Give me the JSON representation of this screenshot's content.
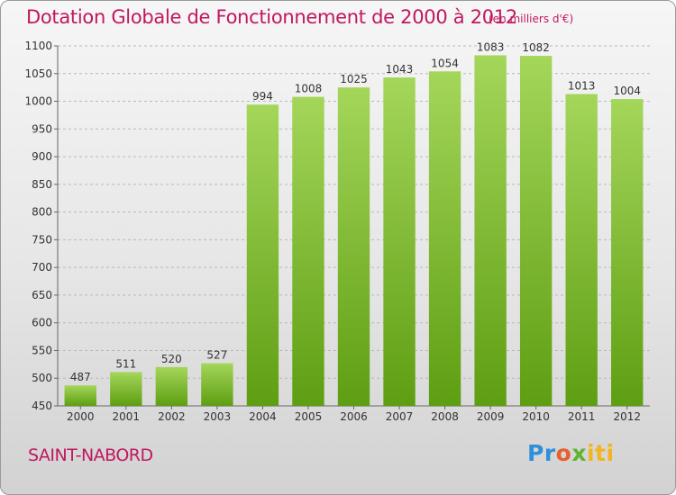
{
  "header": {
    "title": "Dotation Globale de Fonctionnement de 2000 à 2012",
    "unit": "(en milliers d'€)"
  },
  "footer": {
    "town": "SAINT-NABORD",
    "logo": {
      "p1": "Pr",
      "p2": "o",
      "p3": "x",
      "p4": "iti"
    }
  },
  "colors": {
    "title": "#c0185f",
    "bar_top": "#a4d65a",
    "bar_bottom": "#5e9e12",
    "grid": "#b8b8b8"
  },
  "chart_data": {
    "type": "bar",
    "title": "Dotation Globale de Fonctionnement de 2000 à 2012",
    "subtitle": "(en milliers d'€)",
    "xlabel": "",
    "ylabel": "",
    "categories": [
      "2000",
      "2001",
      "2002",
      "2003",
      "2004",
      "2005",
      "2006",
      "2007",
      "2008",
      "2009",
      "2010",
      "2011",
      "2012"
    ],
    "values": [
      487,
      511,
      520,
      527,
      994,
      1008,
      1025,
      1043,
      1054,
      1083,
      1082,
      1013,
      1004
    ],
    "ylim": [
      450,
      1100
    ],
    "yticks": [
      450,
      500,
      550,
      600,
      650,
      700,
      750,
      800,
      850,
      900,
      950,
      1000,
      1050,
      1100
    ],
    "grid": "horizontal dashed",
    "data_labels": true
  }
}
